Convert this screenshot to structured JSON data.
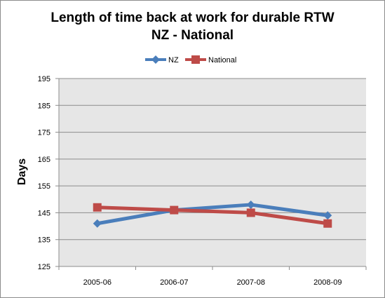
{
  "chart_data": {
    "type": "line",
    "title_lines": [
      "Length of time back at work for durable RTW",
      "NZ - National"
    ],
    "xlabel": "",
    "ylabel": "Days",
    "categories": [
      "2005-06",
      "2006-07",
      "2007-08",
      "2008-09"
    ],
    "series": [
      {
        "name": "NZ",
        "values": [
          141,
          146,
          148,
          144
        ],
        "color": "#4a7ebb",
        "marker": "diamond"
      },
      {
        "name": "National",
        "values": [
          147,
          146,
          145,
          141
        ],
        "color": "#be4b48",
        "marker": "square"
      }
    ],
    "ylim": [
      125,
      195
    ],
    "yticks": [
      125,
      135,
      145,
      155,
      165,
      175,
      185,
      195
    ],
    "grid": true,
    "plot_background": "#e6e6e6",
    "gridline_color": "#8c8c8c",
    "legend": "top"
  }
}
